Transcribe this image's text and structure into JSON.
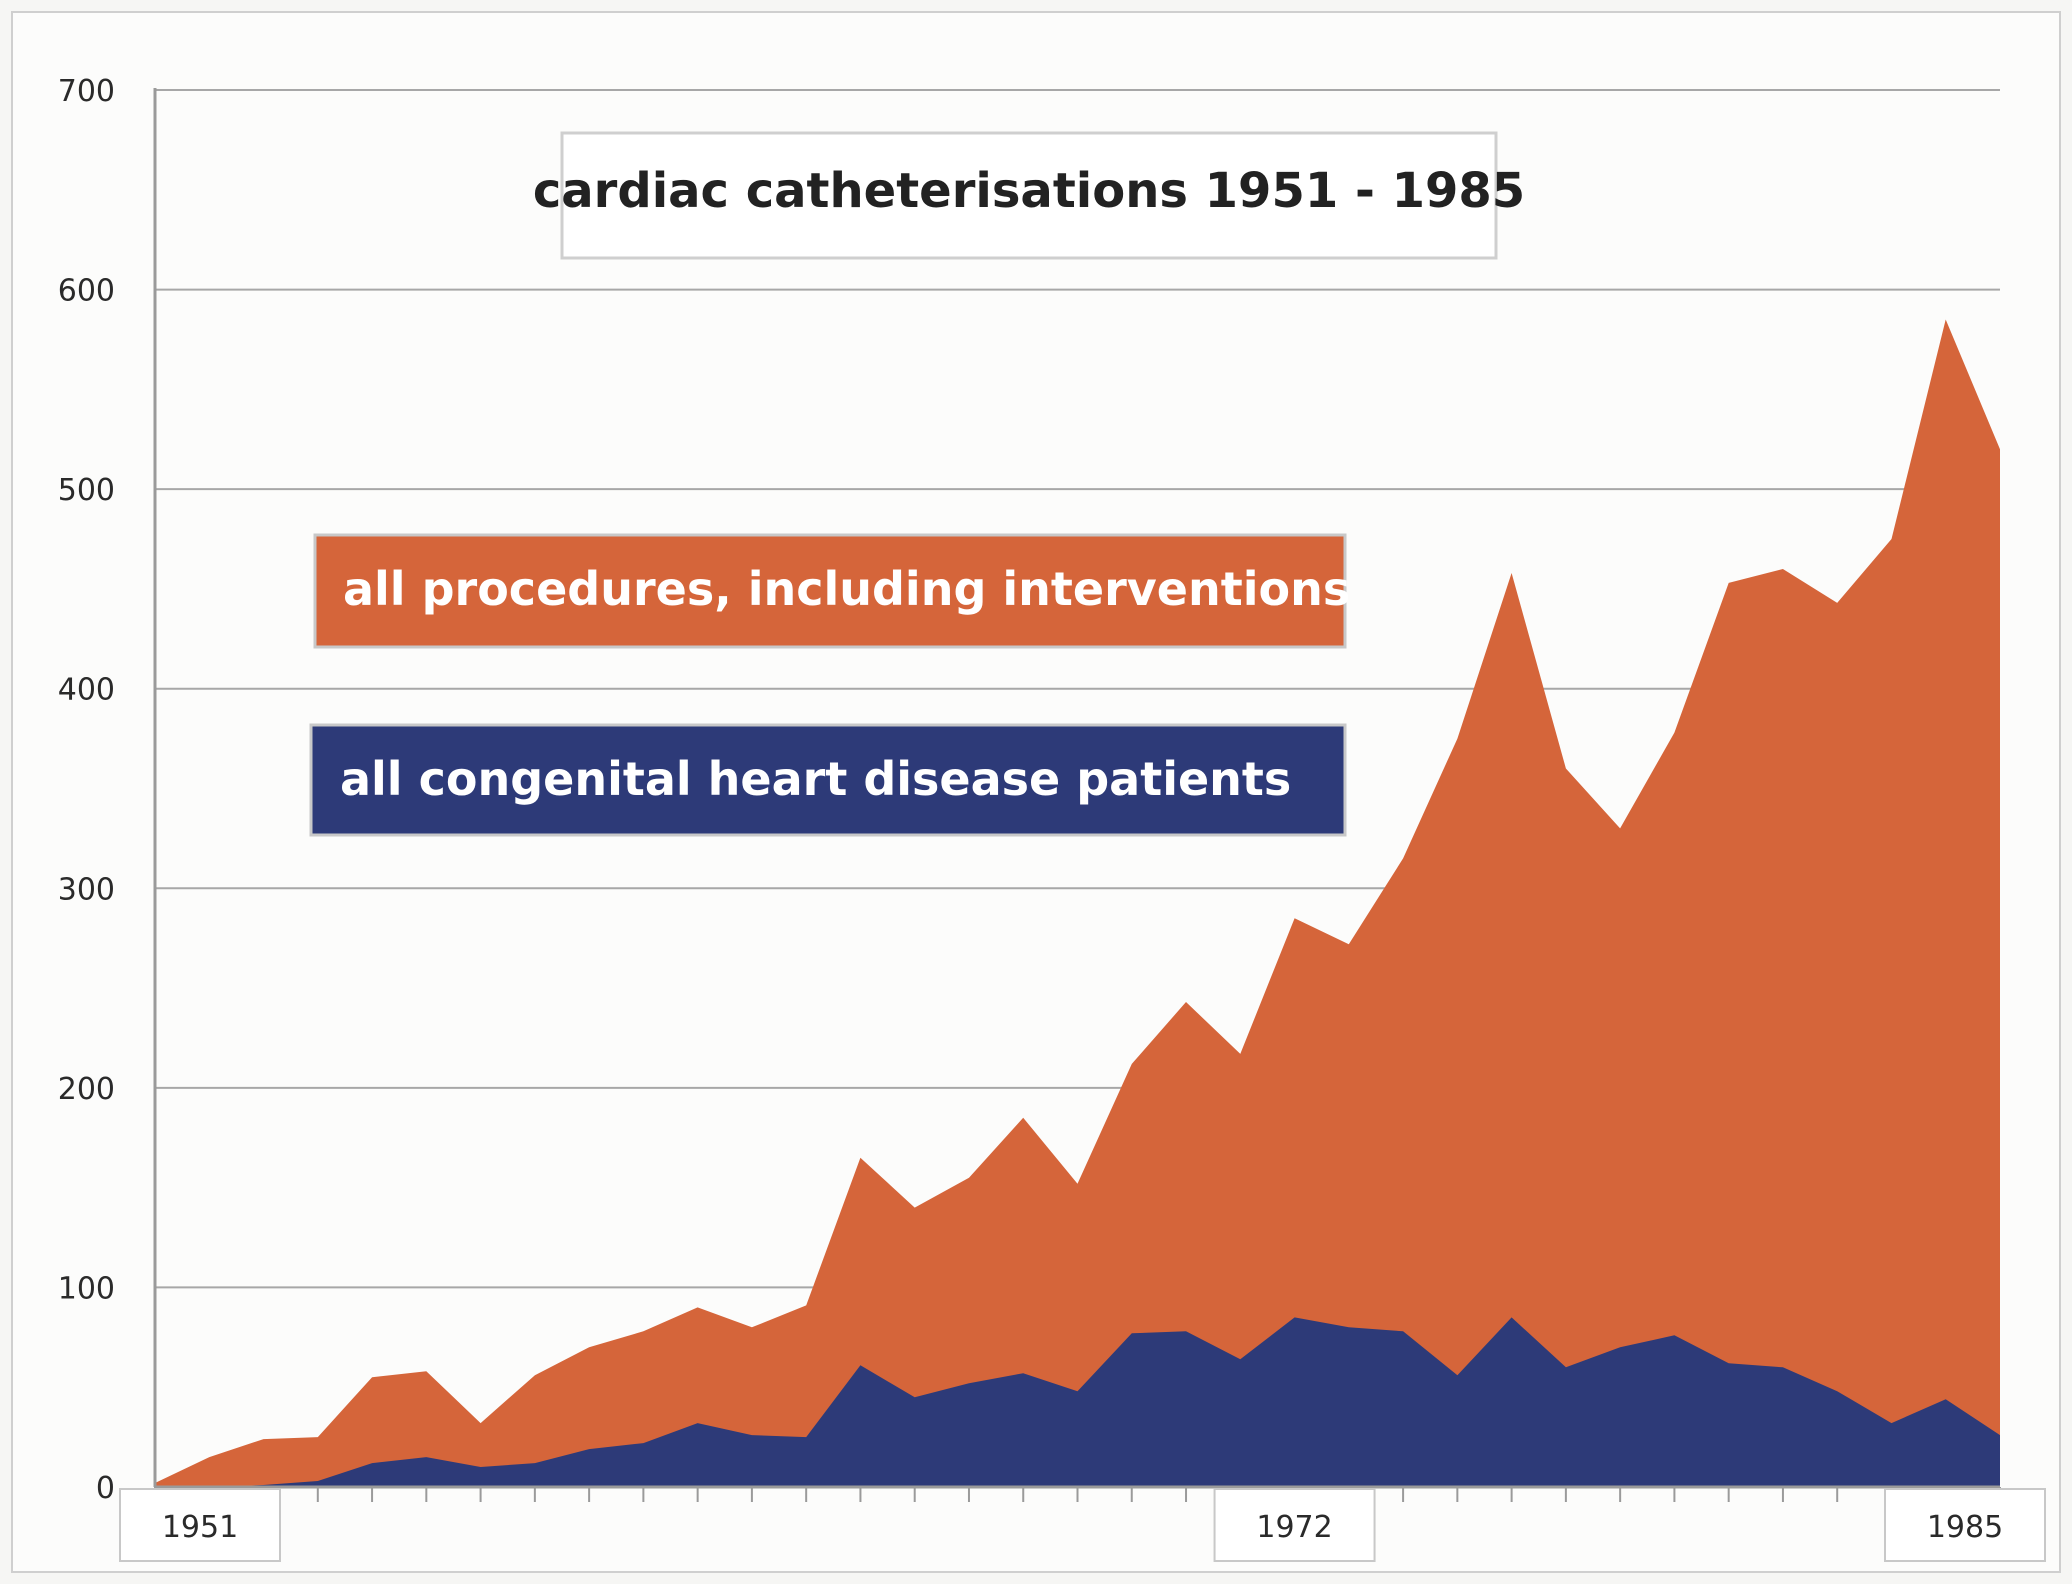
{
  "chart_data": {
    "type": "area",
    "title": "cardiac catheterisations 1951 - 1985",
    "xlabel": "",
    "ylabel": "",
    "ylim": [
      0,
      700
    ],
    "yticks": [
      0,
      100,
      200,
      300,
      400,
      500,
      600,
      700
    ],
    "xtick_labels": [
      {
        "year": 1951,
        "label": "1951"
      },
      {
        "year": 1972,
        "label": "1972"
      },
      {
        "year": 1985,
        "label": "1985"
      }
    ],
    "grid": true,
    "x": [
      1951,
      1952,
      1953,
      1954,
      1955,
      1956,
      1957,
      1958,
      1959,
      1960,
      1961,
      1962,
      1963,
      1964,
      1965,
      1966,
      1967,
      1968,
      1969,
      1970,
      1971,
      1972,
      1973,
      1974,
      1975,
      1976,
      1977,
      1978,
      1979,
      1980,
      1981,
      1982,
      1983,
      1984,
      1985
    ],
    "series": [
      {
        "name": "all procedures, including interventions",
        "color": "#d5653a",
        "values": [
          2,
          15,
          24,
          25,
          55,
          58,
          32,
          56,
          70,
          78,
          90,
          80,
          91,
          165,
          140,
          155,
          185,
          152,
          212,
          243,
          217,
          285,
          272,
          315,
          375,
          458,
          360,
          330,
          378,
          453,
          460,
          443,
          475,
          585,
          520
        ]
      },
      {
        "name": "all congenital heart disease patients",
        "color": "#2d3a78",
        "values": [
          0,
          0,
          1,
          3,
          12,
          15,
          10,
          12,
          19,
          22,
          32,
          26,
          25,
          61,
          45,
          52,
          57,
          48,
          77,
          78,
          64,
          85,
          80,
          78,
          56,
          85,
          60,
          70,
          76,
          62,
          60,
          48,
          32,
          44,
          26
        ]
      }
    ]
  }
}
